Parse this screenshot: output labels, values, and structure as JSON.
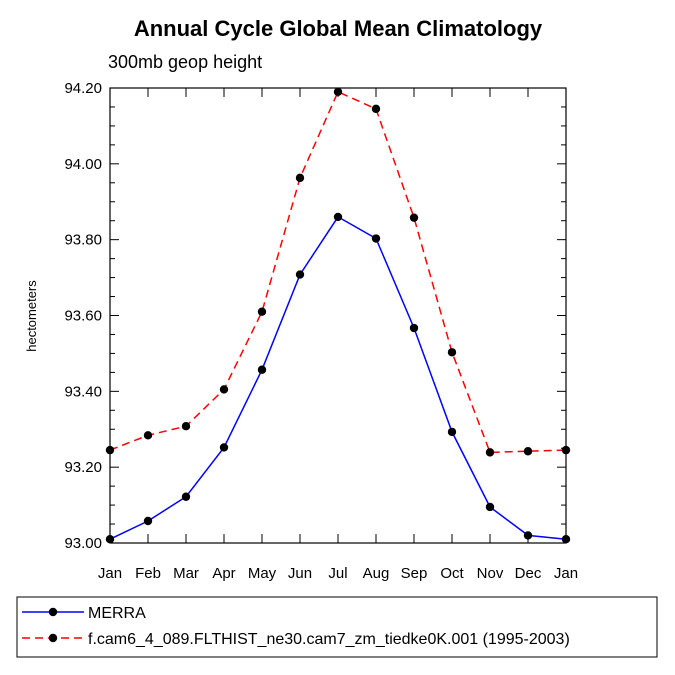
{
  "chart_data": {
    "type": "line",
    "title": "Annual Cycle Global Mean Climatology",
    "subtitle": "300mb geop height",
    "ylabel": "hectometers",
    "xlabel": "",
    "categories": [
      "Jan",
      "Feb",
      "Mar",
      "Apr",
      "May",
      "Jun",
      "Jul",
      "Aug",
      "Sep",
      "Oct",
      "Nov",
      "Dec",
      "Jan"
    ],
    "ylim": [
      93.0,
      94.2
    ],
    "yticks": [
      "93.00",
      "93.20",
      "93.40",
      "93.60",
      "93.80",
      "94.00",
      "94.20"
    ],
    "series": [
      {
        "name": "MERRA",
        "color": "#0000ff",
        "dash": "solid",
        "values": [
          93.01,
          93.058,
          93.122,
          93.252,
          93.457,
          93.708,
          93.86,
          93.803,
          93.567,
          93.293,
          93.095,
          93.02,
          93.01
        ]
      },
      {
        "name": "f.cam6_4_089.FLTHIST_ne30.cam7_zm_tiedke0K.001 (1995-2003)",
        "color": "#ff0000",
        "dash": "dashed",
        "values": [
          93.245,
          93.284,
          93.308,
          93.405,
          93.61,
          93.963,
          94.19,
          94.145,
          93.858,
          93.503,
          93.239,
          93.242,
          93.245
        ]
      }
    ],
    "legend": "bottom",
    "grid": false
  }
}
